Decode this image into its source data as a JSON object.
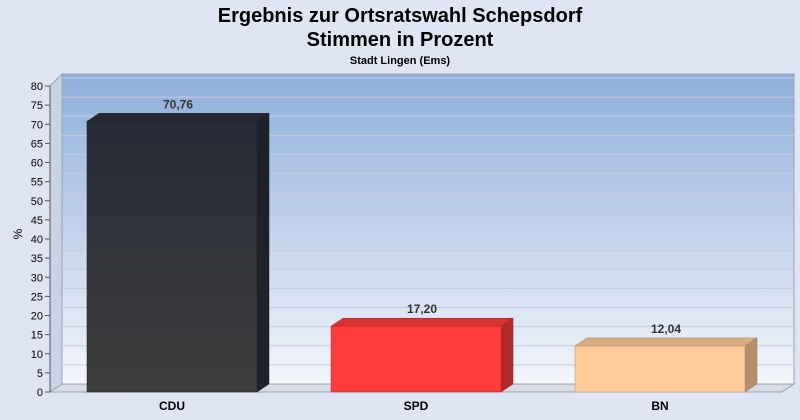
{
  "chart_data": {
    "type": "bar",
    "title": "Ergebnis zur Ortsratswahl Schepsdorf",
    "title_line2": "Stimmen in Prozent",
    "subtitle": "Stadt Lingen (Ems)",
    "ylabel": "%",
    "xlabel": "",
    "ylim": [
      0,
      80
    ],
    "yticks": [
      0,
      5,
      10,
      15,
      20,
      25,
      30,
      35,
      40,
      45,
      50,
      55,
      60,
      65,
      70,
      75,
      80
    ],
    "categories": [
      "CDU",
      "SPD",
      "BN"
    ],
    "values": [
      70.76,
      17.2,
      12.04
    ],
    "value_labels": [
      "70,76",
      "17,20",
      "12,04"
    ],
    "colors": [
      "#2b2f3a",
      "#ff3b3b",
      "#ffcc99"
    ],
    "grid": true,
    "legend": "none"
  }
}
